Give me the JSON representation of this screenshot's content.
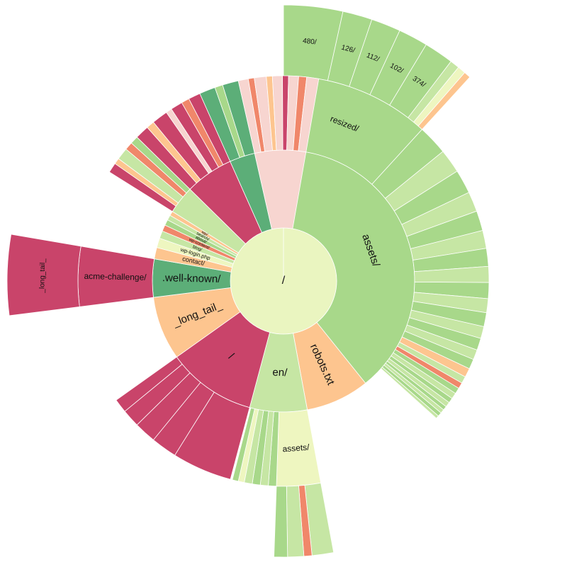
{
  "chart_data": {
    "type": "sunburst",
    "title": "",
    "colors": {
      "green": "#a8d88a",
      "green_light": "#c6e6a4",
      "green_dark": "#5cae78",
      "cream": "#eef6c0",
      "root": "#eaf5c0",
      "orange": "#fdc58f",
      "salmon": "#f0876a",
      "red": "#c9446a",
      "pink_light": "#f7d5d0"
    },
    "root": {
      "label": "/",
      "color_key": "root",
      "children": [
        {
          "label": "assets/",
          "value": 25,
          "color_key": "green",
          "children": [
            {
              "label": "resized/",
              "value": 6,
              "color_key": "green",
              "children": [
                {
                  "label": "480/",
                  "value": 2.2,
                  "color_key": "green"
                },
                {
                  "label": "126/",
                  "value": 1.1,
                  "color_key": "green"
                },
                {
                  "label": "112/",
                  "value": 1.1,
                  "color_key": "green"
                },
                {
                  "label": "102/",
                  "value": 1.1,
                  "color_key": "green"
                },
                {
                  "label": "374/",
                  "value": 1.1,
                  "color_key": "green"
                },
                {
                  "label": "",
                  "value": 0.35,
                  "color_key": "green_light"
                },
                {
                  "label": "",
                  "value": 0.3,
                  "color_key": "cream"
                },
                {
                  "label": "",
                  "value": 0.25,
                  "color_key": "orange"
                }
              ]
            },
            {
              "label": "",
              "value": 1.5,
              "color_key": "green"
            },
            {
              "label": "",
              "value": 1.2,
              "color_key": "green_light"
            },
            {
              "label": "",
              "value": 1.2,
              "color_key": "green"
            },
            {
              "label": "",
              "value": 1.0,
              "color_key": "green_light"
            },
            {
              "label": "",
              "value": 1.0,
              "color_key": "green"
            },
            {
              "label": "",
              "value": 0.9,
              "color_key": "green_light"
            },
            {
              "label": "",
              "value": 0.9,
              "color_key": "green"
            },
            {
              "label": "",
              "value": 0.8,
              "color_key": "green_light"
            },
            {
              "label": "",
              "value": 0.8,
              "color_key": "green"
            },
            {
              "label": "",
              "value": 0.7,
              "color_key": "green_light"
            },
            {
              "label": "",
              "value": 0.7,
              "color_key": "green"
            },
            {
              "label": "",
              "value": 0.6,
              "color_key": "green_light"
            },
            {
              "label": "",
              "value": 0.6,
              "color_key": "green"
            },
            {
              "label": "",
              "value": 0.5,
              "color_key": "green_light"
            },
            {
              "label": "",
              "value": 0.5,
              "color_key": "green"
            },
            {
              "label": "",
              "value": 0.45,
              "color_key": "orange"
            },
            {
              "label": "",
              "value": 0.35,
              "color_key": "green_light"
            },
            {
              "label": "",
              "value": 0.3,
              "color_key": "salmon"
            },
            {
              "label": "",
              "value": 0.3,
              "color_key": "green"
            },
            {
              "label": "",
              "value": 0.3,
              "color_key": "green_light"
            },
            {
              "label": "",
              "value": 0.25,
              "color_key": "green"
            },
            {
              "label": "",
              "value": 0.25,
              "color_key": "green_light"
            },
            {
              "label": "",
              "value": 0.2,
              "color_key": "green"
            },
            {
              "label": "",
              "value": 0.2,
              "color_key": "green_light"
            },
            {
              "label": "",
              "value": 0.2,
              "color_key": "green"
            },
            {
              "label": "",
              "value": 0.15,
              "color_key": "green_light"
            }
          ]
        },
        {
          "label": "robots.txt",
          "value": 5,
          "color_key": "orange"
        },
        {
          "label": "en/",
          "value": 4.5,
          "color_key": "green_light",
          "children": [
            {
              "label": "assets/",
              "value": 2.2,
              "color_key": "cream",
              "children": [
                {
                  "label": "",
                  "value": 0.8,
                  "color_key": "green_light"
                },
                {
                  "label": "",
                  "value": 0.3,
                  "color_key": "salmon"
                },
                {
                  "label": "",
                  "value": 0.6,
                  "color_key": "green_light"
                },
                {
                  "label": "",
                  "value": 0.5,
                  "color_key": "green"
                }
              ]
            },
            {
              "label": "",
              "value": 0.4,
              "color_key": "green"
            },
            {
              "label": "",
              "value": 0.4,
              "color_key": "green_light"
            },
            {
              "label": "",
              "value": 0.4,
              "color_key": "green"
            },
            {
              "label": "",
              "value": 0.4,
              "color_key": "green_light"
            },
            {
              "label": "",
              "value": 0.3,
              "color_key": "cream"
            },
            {
              "label": "",
              "value": 0.3,
              "color_key": "green"
            }
          ]
        },
        {
          "label": "/",
          "value": 7,
          "color_key": "red",
          "children": [
            {
              "label": "",
              "value": 3,
              "color_key": "red"
            },
            {
              "label": "",
              "value": 1.3,
              "color_key": "red"
            },
            {
              "label": "",
              "value": 1.1,
              "color_key": "red"
            },
            {
              "label": "",
              "value": 0.9,
              "color_key": "red"
            },
            {
              "label": "",
              "value": 0.7,
              "color_key": "red"
            }
          ]
        },
        {
          "label": "_long_tail_",
          "value": 5,
          "color_key": "orange"
        },
        {
          "label": ".well-known/",
          "value": 3,
          "color_key": "green_dark",
          "children": [
            {
              "label": "acme-challenge/",
              "value": 3,
              "color_key": "red",
              "children": [
                {
                  "label": "_long_tail_",
                  "value": 3,
                  "color_key": "red"
                }
              ]
            }
          ]
        },
        {
          "label": "contact/",
          "value": 0.9,
          "color_key": "orange"
        },
        {
          "label": "wp-login.php",
          "value": 0.75,
          "color_key": "cream"
        },
        {
          "label": "blog/",
          "value": 0.6,
          "color_key": "green_light"
        },
        {
          "label": "wp-content/",
          "value": 0.5,
          "color_key": "salmon"
        },
        {
          "label": "about/",
          "value": 0.45,
          "color_key": "green"
        },
        {
          "label": "search/",
          "value": 0.4,
          "color_key": "green_light"
        },
        {
          "label": "wp/",
          "value": 0.35,
          "color_key": "orange"
        },
        {
          "label": "",
          "value": 2.2,
          "color_key": "green_light",
          "children": [
            {
              "label": "",
              "value": 0.5,
              "color_key": "red"
            },
            {
              "label": "",
              "value": 0.3,
              "color_key": "orange"
            },
            {
              "label": "",
              "value": 0.6,
              "color_key": "green_light"
            },
            {
              "label": "",
              "value": 0.4,
              "color_key": "salmon"
            },
            {
              "label": "",
              "value": 0.4,
              "color_key": "green"
            }
          ]
        },
        {
          "label": "",
          "value": 3.8,
          "color_key": "red",
          "children": [
            {
              "label": "",
              "value": 0.7,
              "color_key": "red"
            },
            {
              "label": "",
              "value": 0.4,
              "color_key": "orange"
            },
            {
              "label": "",
              "value": 0.8,
              "color_key": "red"
            },
            {
              "label": "",
              "value": 0.3,
              "color_key": "pink_light"
            },
            {
              "label": "",
              "value": 0.6,
              "color_key": "red"
            },
            {
              "label": "",
              "value": 0.4,
              "color_key": "salmon"
            },
            {
              "label": "",
              "value": 0.6,
              "color_key": "red"
            }
          ]
        },
        {
          "label": "",
          "value": 2.0,
          "color_key": "green_dark",
          "children": [
            {
              "label": "",
              "value": 0.8,
              "color_key": "green_dark"
            },
            {
              "label": "",
              "value": 0.4,
              "color_key": "green"
            },
            {
              "label": "",
              "value": 0.8,
              "color_key": "green_dark"
            }
          ]
        },
        {
          "label": "",
          "value": 4.0,
          "color_key": "pink_light",
          "children": [
            {
              "label": "",
              "value": 0.5,
              "color_key": "pink_light"
            },
            {
              "label": "",
              "value": 0.3,
              "color_key": "salmon"
            },
            {
              "label": "",
              "value": 0.6,
              "color_key": "pink_light"
            },
            {
              "label": "",
              "value": 0.3,
              "color_key": "orange"
            },
            {
              "label": "",
              "value": 0.5,
              "color_key": "pink_light"
            },
            {
              "label": "",
              "value": 0.3,
              "color_key": "red"
            },
            {
              "label": "",
              "value": 0.5,
              "color_key": "pink_light"
            },
            {
              "label": "",
              "value": 0.4,
              "color_key": "salmon"
            },
            {
              "label": "",
              "value": 0.6,
              "color_key": "pink_light"
            }
          ]
        }
      ]
    }
  }
}
